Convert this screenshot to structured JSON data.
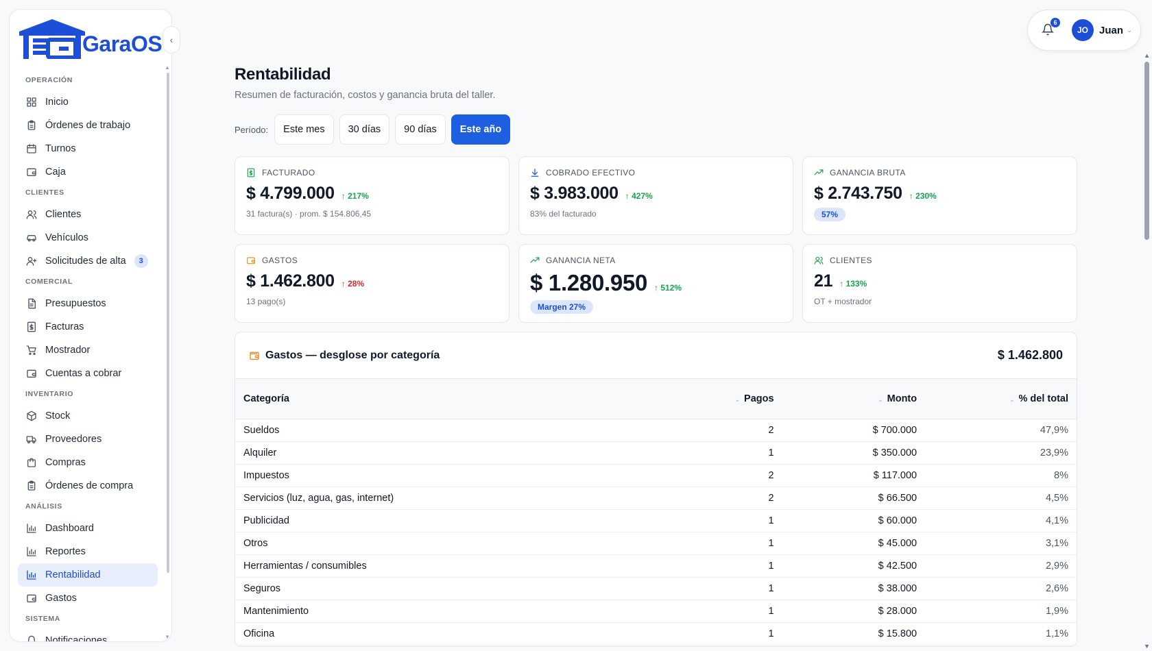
{
  "app": {
    "logo_text": "GaraOS"
  },
  "sidebar": {
    "sections": [
      {
        "title": "OPERACIÓN",
        "items": [
          {
            "label": "Inicio",
            "icon": "grid-icon"
          },
          {
            "label": "Órdenes de trabajo",
            "icon": "clipboard-icon"
          },
          {
            "label": "Turnos",
            "icon": "calendar-icon"
          },
          {
            "label": "Caja",
            "icon": "wallet-icon"
          }
        ]
      },
      {
        "title": "CLIENTES",
        "items": [
          {
            "label": "Clientes",
            "icon": "users-icon"
          },
          {
            "label": "Vehículos",
            "icon": "car-icon"
          },
          {
            "label": "Solicitudes de alta",
            "icon": "user-plus-icon",
            "badge": "3"
          }
        ]
      },
      {
        "title": "COMERCIAL",
        "items": [
          {
            "label": "Presupuestos",
            "icon": "file-icon"
          },
          {
            "label": "Facturas",
            "icon": "receipt-icon"
          },
          {
            "label": "Mostrador",
            "icon": "cart-icon"
          },
          {
            "label": "Cuentas a cobrar",
            "icon": "wallet-icon"
          }
        ]
      },
      {
        "title": "INVENTARIO",
        "items": [
          {
            "label": "Stock",
            "icon": "box-icon"
          },
          {
            "label": "Proveedores",
            "icon": "truck-icon"
          },
          {
            "label": "Compras",
            "icon": "bag-icon"
          },
          {
            "label": "Órdenes de compra",
            "icon": "clipboard-icon"
          }
        ]
      },
      {
        "title": "ANÁLISIS",
        "items": [
          {
            "label": "Dashboard",
            "icon": "bar-chart-icon"
          },
          {
            "label": "Reportes",
            "icon": "bar-chart-icon"
          },
          {
            "label": "Rentabilidad",
            "icon": "bar-chart-icon",
            "active": true
          },
          {
            "label": "Gastos",
            "icon": "wallet-icon"
          }
        ]
      },
      {
        "title": "SISTEMA",
        "items": [
          {
            "label": "Notificaciones",
            "icon": "bell-icon"
          }
        ]
      }
    ]
  },
  "topbar": {
    "notif_count": "6",
    "avatar_initials": "JO",
    "user_name": "Juan"
  },
  "page": {
    "title": "Rentabilidad",
    "subtitle": "Resumen de facturación, costos y ganancia bruta del taller.",
    "period_label": "Período:",
    "periods": [
      "Este mes",
      "30 días",
      "90 días",
      "Este año"
    ],
    "active_period": "Este año"
  },
  "cards": [
    {
      "label": "FACTURADO",
      "value": "$ 4.799.000",
      "delta": "217%",
      "dir": "up",
      "sub": "31 factura(s) · prom. $ 154.806,45",
      "icon": "dollar-doc-icon",
      "icon_color": "#16a34a"
    },
    {
      "label": "COBRADO EFECTIVO",
      "value": "$ 3.983.000",
      "delta": "427%",
      "dir": "up",
      "sub": "83% del facturado",
      "icon": "download-icon",
      "icon_color": "#1d4ed8"
    },
    {
      "label": "GANANCIA BRUTA",
      "value": "$ 2.743.750",
      "delta": "230%",
      "dir": "up",
      "pill": "57%",
      "icon": "trending-up-icon",
      "icon_color": "#16a34a"
    },
    {
      "label": "GASTOS",
      "value": "$ 1.462.800",
      "delta": "28%",
      "dir": "down",
      "sub": "13 pago(s)",
      "icon": "wallet-icon",
      "icon_color": "#ea8a1a"
    },
    {
      "label": "GANANCIA NETA",
      "value": "$ 1.280.950",
      "delta": "512%",
      "dir": "up",
      "pill": "Margen 27%",
      "big": true,
      "icon": "trending-up-icon",
      "icon_color": "#16a34a"
    },
    {
      "label": "CLIENTES",
      "value": "21",
      "delta": "133%",
      "dir": "up",
      "sub": "OT + mostrador",
      "icon": "users-icon",
      "icon_color": "#16a34a"
    }
  ],
  "expenses": {
    "title": "Gastos — desglose por categoría",
    "total": "$ 1.462.800",
    "columns": [
      "Categoría",
      "Pagos",
      "Monto",
      "% del total"
    ],
    "rows": [
      {
        "category": "Sueldos",
        "payments": "2",
        "amount": "$ 700.000",
        "pct": "47,9%"
      },
      {
        "category": "Alquiler",
        "payments": "1",
        "amount": "$ 350.000",
        "pct": "23,9%"
      },
      {
        "category": "Impuestos",
        "payments": "2",
        "amount": "$ 117.000",
        "pct": "8%"
      },
      {
        "category": "Servicios (luz, agua, gas, internet)",
        "payments": "2",
        "amount": "$ 66.500",
        "pct": "4,5%"
      },
      {
        "category": "Publicidad",
        "payments": "1",
        "amount": "$ 60.000",
        "pct": "4,1%"
      },
      {
        "category": "Otros",
        "payments": "1",
        "amount": "$ 45.000",
        "pct": "3,1%"
      },
      {
        "category": "Herramientas / consumibles",
        "payments": "1",
        "amount": "$ 42.500",
        "pct": "2,9%"
      },
      {
        "category": "Seguros",
        "payments": "1",
        "amount": "$ 38.000",
        "pct": "2,6%"
      },
      {
        "category": "Mantenimiento",
        "payments": "1",
        "amount": "$ 28.000",
        "pct": "1,9%"
      },
      {
        "category": "Oficina",
        "payments": "1",
        "amount": "$ 15.800",
        "pct": "1,1%"
      }
    ]
  },
  "colors": {
    "accent": "#1d5fe0",
    "active_bg": "#e8eefc",
    "up": "#16a34a",
    "down": "#dc2626"
  }
}
